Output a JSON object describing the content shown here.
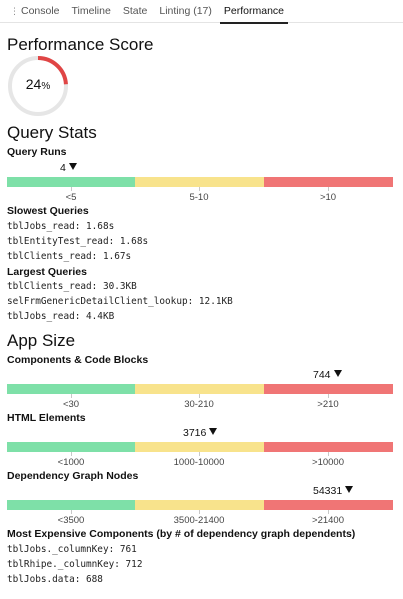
{
  "tabs": [
    {
      "label": "Console",
      "active": false
    },
    {
      "label": "Timeline",
      "active": false
    },
    {
      "label": "State",
      "active": false
    },
    {
      "label": "Linting (17)",
      "active": false
    },
    {
      "label": "Performance",
      "active": true
    }
  ],
  "performance": {
    "title": "Performance Score",
    "score": "24",
    "score_unit": "%",
    "score_fraction": 0.24,
    "arc_color": "#e04545"
  },
  "query_stats": {
    "title": "Query Stats",
    "query_runs": {
      "label": "Query Runs",
      "marker": "4",
      "ranges": [
        "<5",
        "5-10",
        ">10"
      ]
    },
    "slowest": {
      "label": "Slowest Queries",
      "items": [
        "tblJobs_read: 1.68s",
        "tblEntityTest_read: 1.68s",
        "tblClients_read: 1.67s"
      ]
    },
    "largest": {
      "label": "Largest Queries",
      "items": [
        "tblClients_read: 30.3KB",
        "selFrmGenericDetailClient_lookup: 12.1KB",
        "tblJobs_read: 4.4KB"
      ]
    }
  },
  "app_size": {
    "title": "App Size",
    "components": {
      "label": "Components & Code Blocks",
      "marker": "744",
      "ranges": [
        "<30",
        "30-210",
        ">210"
      ]
    },
    "html_elements": {
      "label": "HTML Elements",
      "marker": "3716",
      "ranges": [
        "<1000",
        "1000-10000",
        ">10000"
      ]
    },
    "dependency_nodes": {
      "label": "Dependency Graph Nodes",
      "marker": "54331",
      "ranges": [
        "<3500",
        "3500-21400",
        ">21400"
      ]
    },
    "expensive": {
      "label": "Most Expensive Components (by # of dependency graph dependents)",
      "items": [
        "tblJobs._columnKey: 761",
        "tblRhipe._columnKey: 712",
        "tblJobs.data: 688"
      ]
    }
  },
  "colors": {
    "green": "#7ee0a8",
    "yellow": "#f8e38c",
    "red": "#f07575"
  }
}
